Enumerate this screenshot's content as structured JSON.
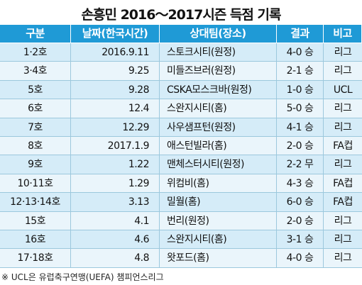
{
  "header": {
    "title": "손흥민 2016～2017시즌 득점 기록"
  },
  "table": {
    "columns": [
      "구분",
      "날짜(한국시간)",
      "상대팀(장소)",
      "결과",
      "비고"
    ],
    "rows": [
      [
        "1·2호",
        "2016.9.11",
        "스토크시티(원정)",
        "4-0 승",
        "리그"
      ],
      [
        "3·4호",
        "9.25",
        "미들즈브러(원정)",
        "2-1 승",
        "리그"
      ],
      [
        "5호",
        "9.28",
        "CSKA모스크바(원정)",
        "1-0 승",
        "UCL"
      ],
      [
        "6호",
        "12.4",
        "스완지시티(홈)",
        "5-0 승",
        "리그"
      ],
      [
        "7호",
        "12.29",
        "사우샘프턴(원정)",
        "4-1 승",
        "리그"
      ],
      [
        "8호",
        "2017.1.9",
        "애스턴빌라(홈)",
        "2-0 승",
        "FA컵"
      ],
      [
        "9호",
        "1.22",
        "맨체스터시티(원정)",
        "2-2 무",
        "리그"
      ],
      [
        "10·11호",
        "1.29",
        "위컴비(홈)",
        "4-3 승",
        "FA컵"
      ],
      [
        "12·13·14호",
        "3.13",
        "밀월(홈)",
        "6-0 승",
        "FA컵"
      ],
      [
        "15호",
        "4.1",
        "번리(원정)",
        "2-0 승",
        "리그"
      ],
      [
        "16호",
        "4.6",
        "스완지시티(홈)",
        "3-1 승",
        "리그"
      ],
      [
        "17·18호",
        "4.8",
        "왓포드(홈)",
        "4-0 승",
        "리그"
      ]
    ]
  },
  "footnote": "※ UCL은 유럽축구연맹(UEFA) 챔피언스리그"
}
